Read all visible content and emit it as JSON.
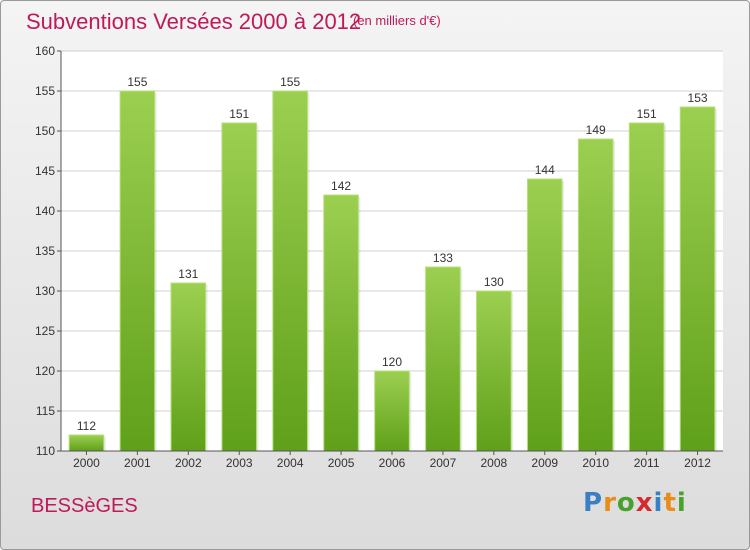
{
  "header": {
    "title": "Subventions Versées 2000 à 2012",
    "subtitle": "(en milliers d'€)"
  },
  "footer": {
    "city": "BESSèGES",
    "logo_letters": [
      {
        "char": "P",
        "color": "#3a7fc4"
      },
      {
        "char": "r",
        "color": "#e88c1a"
      },
      {
        "char": "o",
        "color": "#4aa02c"
      },
      {
        "char": "x",
        "color": "#d8282f"
      },
      {
        "char": "i",
        "color": "#3a7fc4"
      },
      {
        "char": "t",
        "color": "#e88c1a"
      },
      {
        "char": "i",
        "color": "#4aa02c"
      }
    ]
  },
  "colors": {
    "title": "#c0185a",
    "bar_top": "#9ccf50",
    "bar_bottom": "#5fa01a",
    "grid": "#d0d0d0"
  },
  "chart_data": {
    "type": "bar",
    "categories": [
      "2000",
      "2001",
      "2002",
      "2003",
      "2004",
      "2005",
      "2006",
      "2007",
      "2008",
      "2009",
      "2010",
      "2011",
      "2012"
    ],
    "values": [
      112,
      155,
      131,
      151,
      155,
      142,
      120,
      133,
      130,
      144,
      149,
      151,
      153
    ],
    "ylim": [
      110,
      160
    ],
    "yticks": [
      110,
      115,
      120,
      125,
      130,
      135,
      140,
      145,
      150,
      155,
      160
    ],
    "grid": true
  }
}
